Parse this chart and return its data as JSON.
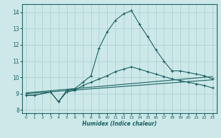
{
  "xlabel": "Humidex (Indice chaleur)",
  "bg_color": "#cce8e8",
  "grid_color": "#aacccc",
  "line_color": "#1a6060",
  "xlim": [
    -0.5,
    23.5
  ],
  "ylim": [
    7.8,
    14.5
  ],
  "yticks": [
    8,
    9,
    10,
    11,
    12,
    13,
    14
  ],
  "xticks": [
    0,
    1,
    2,
    3,
    4,
    5,
    6,
    7,
    8,
    9,
    10,
    11,
    12,
    13,
    14,
    15,
    16,
    17,
    18,
    19,
    20,
    21,
    22,
    23
  ],
  "line1_x": [
    0,
    1,
    3,
    4,
    5,
    6,
    7,
    8,
    9,
    10,
    11,
    12,
    13,
    14,
    15,
    16,
    17,
    18,
    19,
    20,
    21,
    22,
    23
  ],
  "line1_y": [
    8.9,
    8.9,
    9.1,
    8.5,
    9.2,
    9.3,
    9.7,
    10.1,
    11.8,
    12.8,
    13.5,
    13.9,
    14.1,
    13.25,
    12.5,
    11.7,
    11.0,
    10.4,
    10.4,
    10.3,
    10.2,
    10.1,
    9.9
  ],
  "line2_x": [
    0,
    1,
    3,
    4,
    5,
    6,
    7,
    8,
    9,
    10,
    11,
    12,
    13,
    14,
    15,
    16,
    17,
    18,
    19,
    20,
    21,
    22,
    23
  ],
  "line2_y": [
    8.9,
    8.9,
    9.1,
    8.5,
    9.1,
    9.2,
    9.5,
    9.7,
    9.9,
    10.1,
    10.35,
    10.5,
    10.65,
    10.5,
    10.35,
    10.2,
    10.05,
    9.9,
    9.8,
    9.7,
    9.6,
    9.5,
    9.35
  ],
  "line3_x": [
    0,
    23
  ],
  "line3_y": [
    9.0,
    9.85
  ],
  "line4_x": [
    0,
    23
  ],
  "line4_y": [
    9.05,
    10.05
  ]
}
